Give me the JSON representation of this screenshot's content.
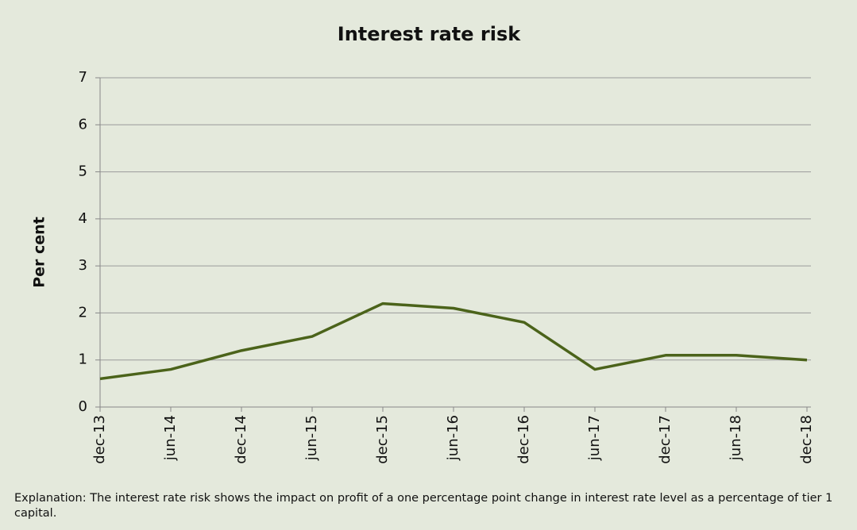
{
  "chart_data": {
    "type": "line",
    "title": "Interest rate risk",
    "y_label": "Per cent",
    "categories": [
      "dec-13",
      "jun-14",
      "dec-14",
      "jun-15",
      "dec-15",
      "jun-16",
      "dec-16",
      "jun-17",
      "dec-17",
      "jun-18",
      "dec-18"
    ],
    "values": [
      0.6,
      0.8,
      1.2,
      1.5,
      2.2,
      2.1,
      1.8,
      0.8,
      1.1,
      1.1,
      1.0
    ],
    "color": "#4b631a",
    "ylim": [
      0,
      7
    ],
    "yticks": [
      0,
      1,
      2,
      3,
      4,
      5,
      6,
      7
    ],
    "grid": true,
    "note": "Explanation: The interest rate risk shows the impact on profit of a one percentage point change in interest rate level as a percentage of tier 1 capital."
  }
}
